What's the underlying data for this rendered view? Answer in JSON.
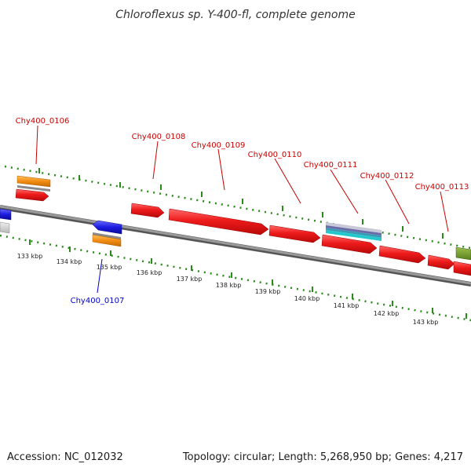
{
  "header": {
    "title": "Chloroflexus sp. Y-400-fl, complete genome"
  },
  "footer": {
    "accession": "Accession: NC_012032",
    "topology": "Topology: circular; Length: 5,268,950 bp; Genes: 4,217"
  },
  "gene_labels": [
    {
      "text": "Chy400_0106",
      "strand": "forward"
    },
    {
      "text": "Chy400_0107",
      "strand": "reverse"
    },
    {
      "text": "Chy400_0108",
      "strand": "forward"
    },
    {
      "text": "Chy400_0109",
      "strand": "forward"
    },
    {
      "text": "Chy400_0110",
      "strand": "forward"
    },
    {
      "text": "Chy400_0111",
      "strand": "forward"
    },
    {
      "text": "Chy400_0112",
      "strand": "forward"
    },
    {
      "text": "Chy400_0113",
      "strand": "forward"
    }
  ],
  "scale_ticks": [
    "133 kbp",
    "134 kbp",
    "135 kbp",
    "136 kbp",
    "137 kbp",
    "138 kbp",
    "139 kbp",
    "140 kbp",
    "141 kbp",
    "142 kbp",
    "143 kbp"
  ],
  "colors": {
    "forward_label": "#cc0000",
    "reverse_label": "#0000cc",
    "cds": "#e8101a",
    "cds_reverse": "#1a1adf",
    "gene": "#f08a12",
    "rrna": "#8888bb",
    "trna": "#22c2c8",
    "other": "#6e9a28",
    "backbone": "#8c8c8c",
    "dots": "#2a8a1a"
  }
}
